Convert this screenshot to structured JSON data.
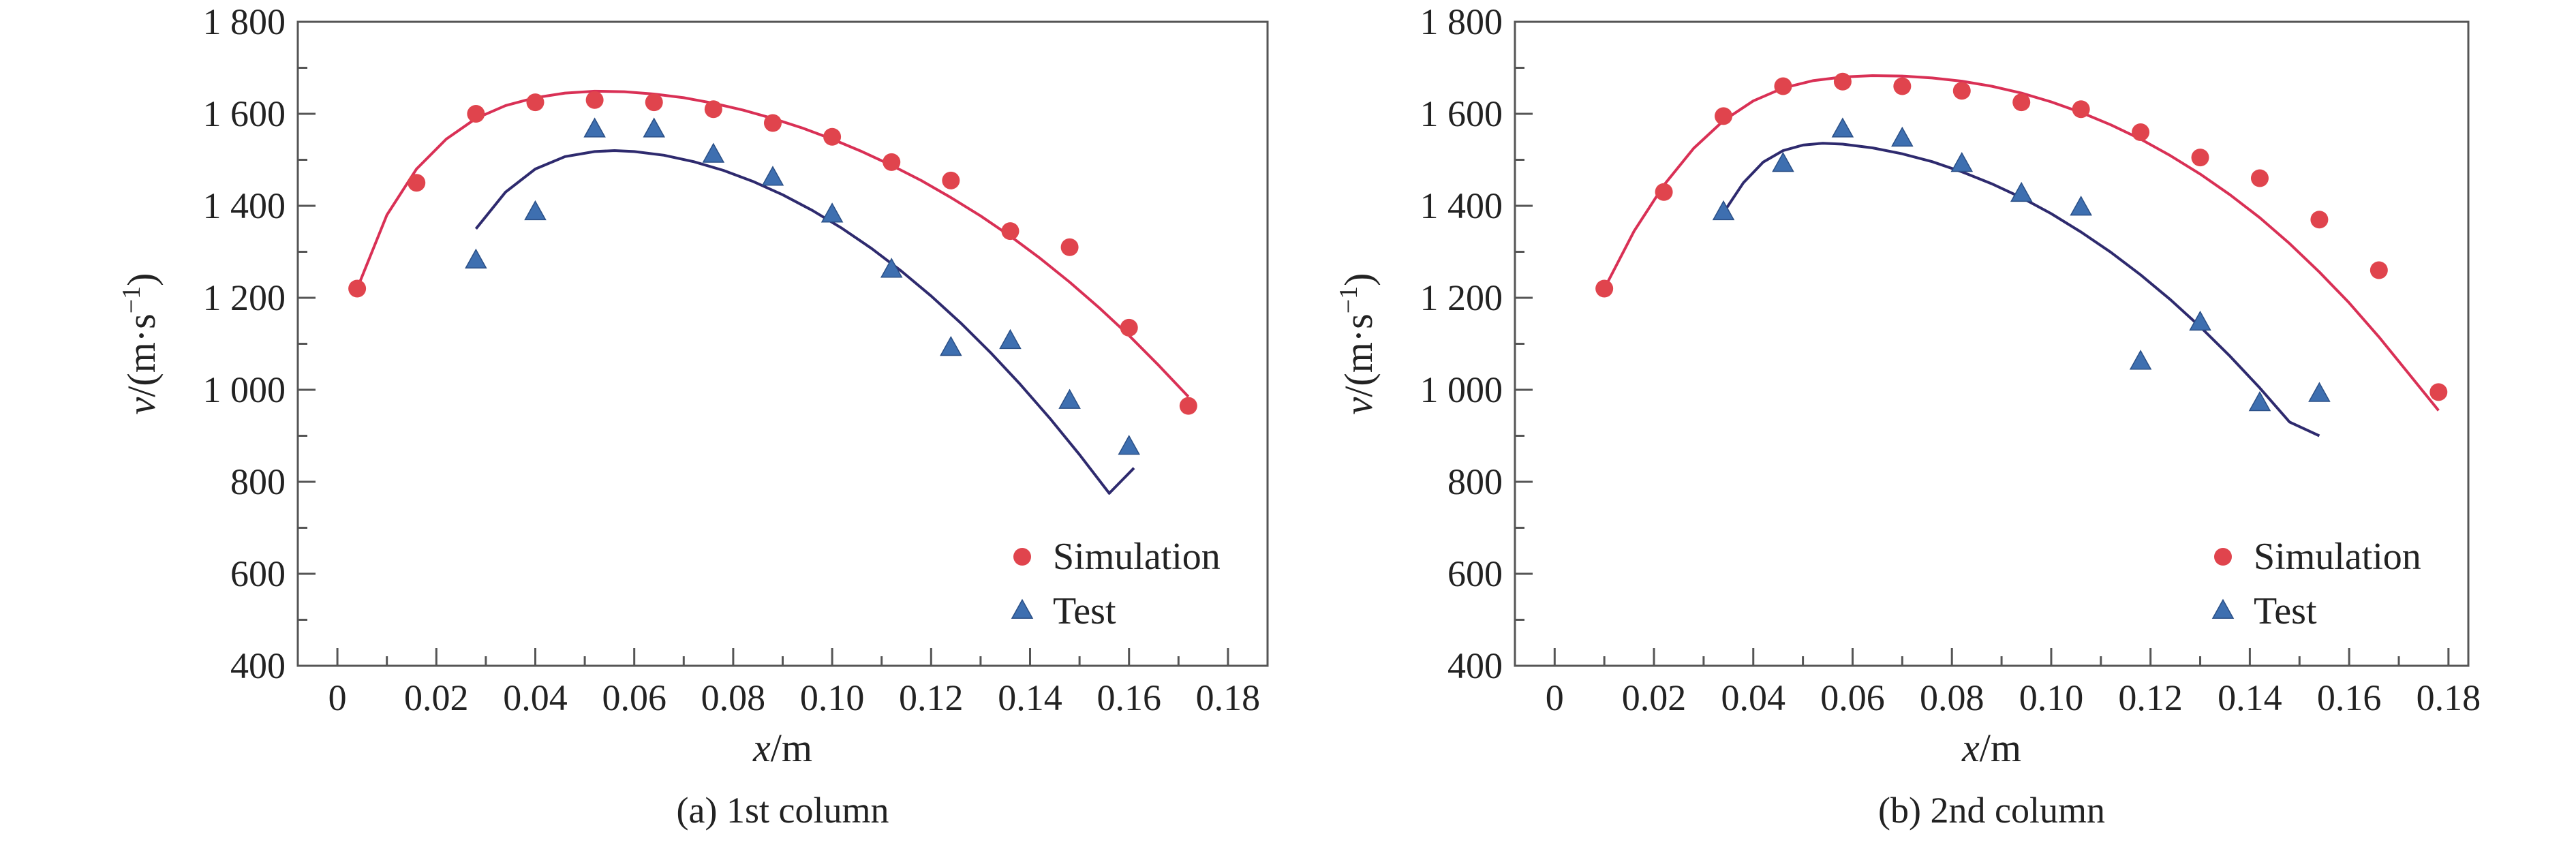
{
  "figure": {
    "colors": {
      "simulation": "#e0444d",
      "test": "#3e6fb0",
      "sim_curve": "#d93055",
      "test_curve": "#2e2a6e",
      "axis": "#555555"
    }
  },
  "chart_data": [
    {
      "type": "scatter",
      "caption": "(a) 1st column",
      "xlabel_var": "x",
      "xlabel_unit": "/m",
      "ylabel_var": "v",
      "ylabel_unit": "/(m·s",
      "ylabel_exp": "−1",
      "ylabel_close": ")",
      "xlim": [
        -0.008,
        0.188
      ],
      "ylim": [
        400,
        1800
      ],
      "xticks": [
        0,
        0.02,
        0.04,
        0.06,
        0.08,
        0.1,
        0.12,
        0.14,
        0.16,
        0.18
      ],
      "xtick_labels": [
        "0",
        "0.02",
        "0.04",
        "0.06",
        "0.08",
        "0.10",
        "0.12",
        "0.14",
        "0.16",
        "0.18"
      ],
      "yticks": [
        400,
        600,
        800,
        1000,
        1200,
        1400,
        1600,
        1800
      ],
      "ytick_labels": [
        "400",
        "600",
        "800",
        "1 000",
        "1 200",
        "1 400",
        "1 600",
        "1 800"
      ],
      "legend": {
        "position": "bottom-right",
        "entries": [
          "Simulation",
          "Test"
        ]
      },
      "series": [
        {
          "name": "Simulation",
          "marker": "circle",
          "x": [
            0.004,
            0.016,
            0.028,
            0.04,
            0.052,
            0.064,
            0.076,
            0.088,
            0.1,
            0.112,
            0.124,
            0.136,
            0.148,
            0.16,
            0.172
          ],
          "y": [
            1220,
            1450,
            1600,
            1625,
            1630,
            1625,
            1610,
            1580,
            1550,
            1495,
            1455,
            1345,
            1310,
            1135,
            965
          ]
        },
        {
          "name": "Test",
          "marker": "triangle",
          "x": [
            0.028,
            0.04,
            0.052,
            0.064,
            0.076,
            0.088,
            0.1,
            0.112,
            0.124,
            0.136,
            0.148,
            0.16
          ],
          "y": [
            1280,
            1385,
            1565,
            1565,
            1510,
            1460,
            1380,
            1260,
            1090,
            1105,
            975,
            875
          ]
        }
      ],
      "fits": [
        {
          "name": "Simulation fit",
          "x": [
            0.004,
            0.01,
            0.016,
            0.022,
            0.028,
            0.034,
            0.04,
            0.046,
            0.052,
            0.058,
            0.064,
            0.07,
            0.076,
            0.082,
            0.088,
            0.094,
            0.1,
            0.106,
            0.112,
            0.118,
            0.124,
            0.13,
            0.136,
            0.142,
            0.148,
            0.154,
            0.16,
            0.166,
            0.172
          ],
          "y": [
            1220,
            1380,
            1480,
            1545,
            1590,
            1618,
            1635,
            1645,
            1649,
            1648,
            1643,
            1635,
            1623,
            1608,
            1590,
            1569,
            1545,
            1518,
            1488,
            1455,
            1418,
            1378,
            1334,
            1286,
            1234,
            1178,
            1118,
            1053,
            985
          ]
        },
        {
          "name": "Test fit",
          "x": [
            0.028,
            0.034,
            0.04,
            0.046,
            0.052,
            0.056,
            0.06,
            0.066,
            0.072,
            0.078,
            0.084,
            0.09,
            0.096,
            0.102,
            0.108,
            0.114,
            0.12,
            0.126,
            0.132,
            0.138,
            0.144,
            0.15,
            0.156,
            0.161
          ],
          "y": [
            1350,
            1430,
            1480,
            1507,
            1518,
            1520,
            1518,
            1510,
            1496,
            1477,
            1453,
            1424,
            1390,
            1351,
            1307,
            1258,
            1204,
            1145,
            1081,
            1012,
            938,
            859,
            775,
            830
          ]
        }
      ]
    },
    {
      "type": "scatter",
      "caption": "(b) 2nd column",
      "xlabel_var": "x",
      "xlabel_unit": "/m",
      "ylabel_var": "v",
      "ylabel_unit": "/(m·s",
      "ylabel_exp": "−1",
      "ylabel_close": ")",
      "xlim": [
        -0.008,
        0.184
      ],
      "ylim": [
        400,
        1800
      ],
      "xticks": [
        0,
        0.02,
        0.04,
        0.06,
        0.08,
        0.1,
        0.12,
        0.14,
        0.16,
        0.18
      ],
      "xtick_labels": [
        "0",
        "0.02",
        "0.04",
        "0.06",
        "0.08",
        "0.10",
        "0.12",
        "0.14",
        "0.16",
        "0.18"
      ],
      "yticks": [
        400,
        600,
        800,
        1000,
        1200,
        1400,
        1600,
        1800
      ],
      "ytick_labels": [
        "400",
        "600",
        "800",
        "1 000",
        "1 200",
        "1 400",
        "1 600",
        "1 800"
      ],
      "legend": {
        "position": "bottom-right",
        "entries": [
          "Simulation",
          "Test"
        ]
      },
      "series": [
        {
          "name": "Simulation",
          "marker": "circle",
          "x": [
            0.01,
            0.022,
            0.034,
            0.046,
            0.058,
            0.07,
            0.082,
            0.094,
            0.106,
            0.118,
            0.13,
            0.142,
            0.154,
            0.166,
            0.178
          ],
          "y": [
            1220,
            1430,
            1595,
            1660,
            1670,
            1660,
            1650,
            1625,
            1610,
            1560,
            1505,
            1460,
            1370,
            1260,
            995
          ]
        },
        {
          "name": "Test",
          "marker": "triangle",
          "x": [
            0.034,
            0.046,
            0.058,
            0.07,
            0.082,
            0.094,
            0.106,
            0.118,
            0.13,
            0.142,
            0.154
          ],
          "y": [
            1385,
            1490,
            1565,
            1545,
            1490,
            1425,
            1395,
            1060,
            1145,
            970,
            990
          ]
        }
      ],
      "fits": [
        {
          "name": "Simulation fit",
          "x": [
            0.01,
            0.016,
            0.022,
            0.028,
            0.034,
            0.04,
            0.046,
            0.052,
            0.058,
            0.064,
            0.07,
            0.076,
            0.082,
            0.088,
            0.094,
            0.1,
            0.106,
            0.112,
            0.118,
            0.124,
            0.13,
            0.136,
            0.142,
            0.148,
            0.154,
            0.16,
            0.166,
            0.172,
            0.178
          ],
          "y": [
            1220,
            1345,
            1445,
            1525,
            1585,
            1628,
            1656,
            1672,
            1680,
            1683,
            1682,
            1678,
            1671,
            1660,
            1645,
            1626,
            1603,
            1576,
            1545,
            1509,
            1469,
            1424,
            1374,
            1318,
            1256,
            1189,
            1115,
            1035,
            955
          ]
        },
        {
          "name": "Test fit",
          "x": [
            0.034,
            0.038,
            0.042,
            0.046,
            0.05,
            0.054,
            0.058,
            0.064,
            0.07,
            0.076,
            0.082,
            0.088,
            0.094,
            0.1,
            0.106,
            0.112,
            0.118,
            0.124,
            0.13,
            0.136,
            0.142,
            0.148,
            0.154
          ],
          "y": [
            1385,
            1450,
            1495,
            1520,
            1532,
            1536,
            1534,
            1526,
            1513,
            1496,
            1474,
            1448,
            1418,
            1383,
            1343,
            1299,
            1250,
            1196,
            1137,
            1073,
            1004,
            930,
            900
          ]
        }
      ]
    }
  ]
}
